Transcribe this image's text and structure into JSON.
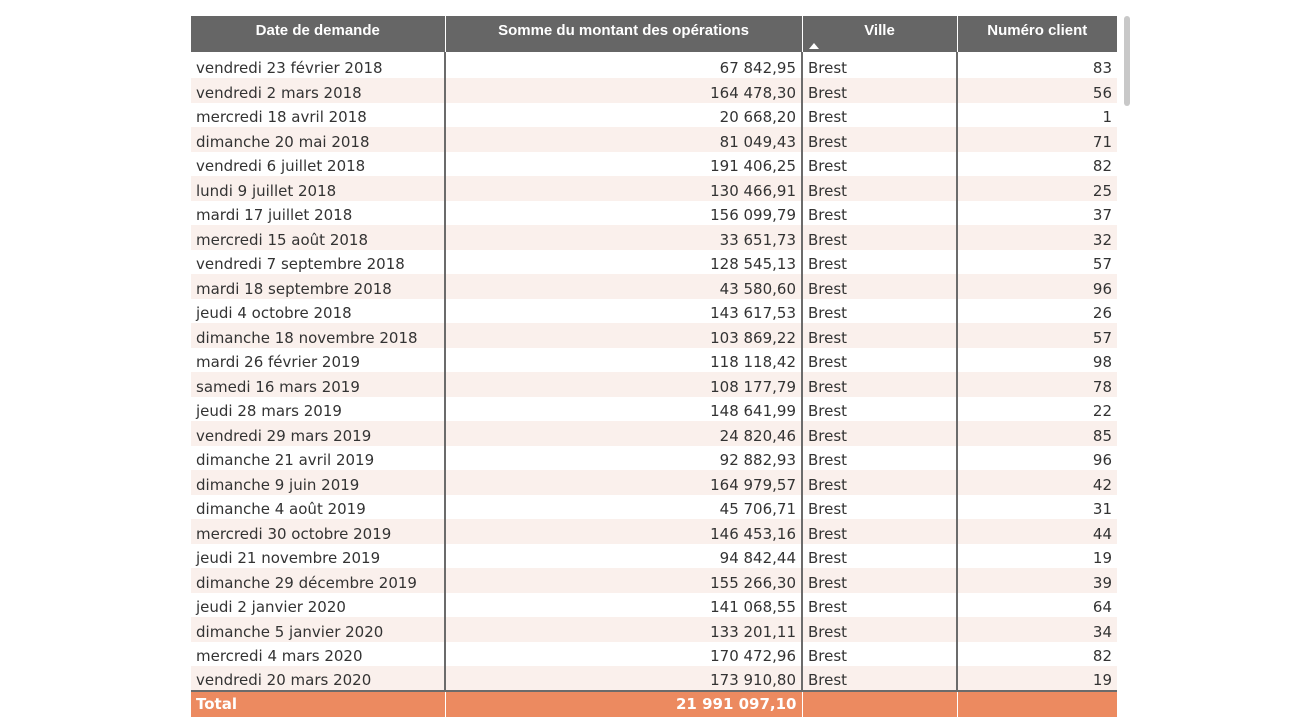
{
  "table": {
    "headers": [
      "Date de demande",
      "Somme du montant des opérations",
      "Ville",
      "Numéro client"
    ],
    "sorted_column": "Ville",
    "sort_direction": "ascending",
    "rows": [
      [
        "vendredi 23 février 2018",
        "67 842,95",
        "Brest",
        "83"
      ],
      [
        "vendredi 2 mars 2018",
        "164 478,30",
        "Brest",
        "56"
      ],
      [
        "mercredi 18 avril 2018",
        "20 668,20",
        "Brest",
        "1"
      ],
      [
        "dimanche 20 mai 2018",
        "81 049,43",
        "Brest",
        "71"
      ],
      [
        "vendredi 6 juillet 2018",
        "191 406,25",
        "Brest",
        "82"
      ],
      [
        "lundi 9 juillet 2018",
        "130 466,91",
        "Brest",
        "25"
      ],
      [
        "mardi 17 juillet 2018",
        "156 099,79",
        "Brest",
        "37"
      ],
      [
        "mercredi 15 août 2018",
        "33 651,73",
        "Brest",
        "32"
      ],
      [
        "vendredi 7 septembre 2018",
        "128 545,13",
        "Brest",
        "57"
      ],
      [
        "mardi 18 septembre 2018",
        "43 580,60",
        "Brest",
        "96"
      ],
      [
        "jeudi 4 octobre 2018",
        "143 617,53",
        "Brest",
        "26"
      ],
      [
        "dimanche 18 novembre 2018",
        "103 869,22",
        "Brest",
        "57"
      ],
      [
        "mardi 26 février 2019",
        "118 118,42",
        "Brest",
        "98"
      ],
      [
        "samedi 16 mars 2019",
        "108 177,79",
        "Brest",
        "78"
      ],
      [
        "jeudi 28 mars 2019",
        "148 641,99",
        "Brest",
        "22"
      ],
      [
        "vendredi 29 mars 2019",
        "24 820,46",
        "Brest",
        "85"
      ],
      [
        "dimanche 21 avril 2019",
        "92 882,93",
        "Brest",
        "96"
      ],
      [
        "dimanche 9 juin 2019",
        "164 979,57",
        "Brest",
        "42"
      ],
      [
        "dimanche 4 août 2019",
        "45 706,71",
        "Brest",
        "31"
      ],
      [
        "mercredi 30 octobre 2019",
        "146 453,16",
        "Brest",
        "44"
      ],
      [
        "jeudi 21 novembre 2019",
        "94 842,44",
        "Brest",
        "19"
      ],
      [
        "dimanche 29 décembre 2019",
        "155 266,30",
        "Brest",
        "39"
      ],
      [
        "jeudi 2 janvier 2020",
        "141 068,55",
        "Brest",
        "64"
      ],
      [
        "dimanche 5 janvier 2020",
        "133 201,11",
        "Brest",
        "34"
      ],
      [
        "mercredi 4 mars 2020",
        "170 472,96",
        "Brest",
        "82"
      ],
      [
        "vendredi 20 mars 2020",
        "173 910,80",
        "Brest",
        "19"
      ]
    ],
    "total": {
      "label": "Total",
      "amount": "21 991 097,10",
      "ville": "",
      "client": ""
    }
  },
  "colors": {
    "header_bg": "#666666",
    "band_row": "#faf0ec",
    "total_bg": "#ec8a60",
    "scrollbar": "#c8c8c8"
  },
  "icons": {
    "sort": "sort-ascending-icon"
  }
}
